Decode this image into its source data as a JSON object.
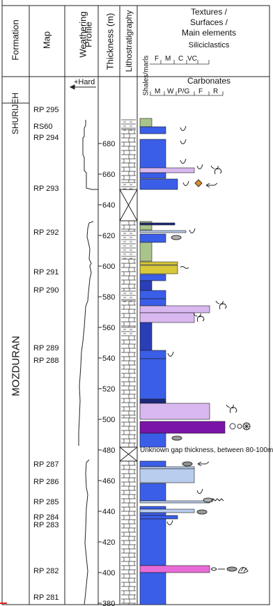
{
  "headers": {
    "formation": "Formation",
    "map": "Map",
    "weathering_line1": "Weathering",
    "weathering_line2": "Profile",
    "thickness": "Thickness (m)",
    "lithostratigraphy": "Lithostratigraphy",
    "textures_line1": "Textures /",
    "textures_line2": "Surfaces /",
    "textures_line3": "Main elements",
    "siliciclastics": "Siliciclastics",
    "siliciclastic_scale": [
      "F",
      "M",
      "C",
      "VC"
    ],
    "carbonates": "Carbonates",
    "shales_marls": "Shales/marls",
    "carbonate_scale": [
      "M",
      "W",
      "P/G",
      "F",
      "R"
    ],
    "hard_label": "+Hard"
  },
  "formations": [
    "SHURIJEH",
    "MOZDURAN"
  ],
  "samples": [
    {
      "label": "RP 295"
    },
    {
      "label": "RS60"
    },
    {
      "label": "RP 294"
    },
    {
      "label": "RP 293"
    },
    {
      "label": "RP 292"
    },
    {
      "label": "RP 291"
    },
    {
      "label": "RP 290"
    },
    {
      "label": "RP 289"
    },
    {
      "label": "RP 288"
    },
    {
      "label": "RP 287"
    },
    {
      "label": "RP 286"
    },
    {
      "label": "RP 285"
    },
    {
      "label": "RP 284"
    },
    {
      "label": "RP 283"
    },
    {
      "label": "RP 282"
    },
    {
      "label": "RP 281"
    }
  ],
  "thickness_ticks": [
    380,
    400,
    420,
    440,
    460,
    480,
    500,
    520,
    540,
    560,
    580,
    600,
    620,
    640,
    660,
    680
  ],
  "gap_note": "Unknown gap thickness, between 80-100m",
  "colors": {
    "blue": "#3b5ee8",
    "dark_blue": "#2a3eb8",
    "navy": "#1d2a7a",
    "lilac": "#d9b8f0",
    "purple": "#7a14a8",
    "olive": "#a9c48a",
    "yellow": "#d9c93a",
    "light_blue": "#b9cdee",
    "orange": "#e08a2a",
    "pink": "#e86ad8",
    "grey": "#8a8a8a"
  }
}
